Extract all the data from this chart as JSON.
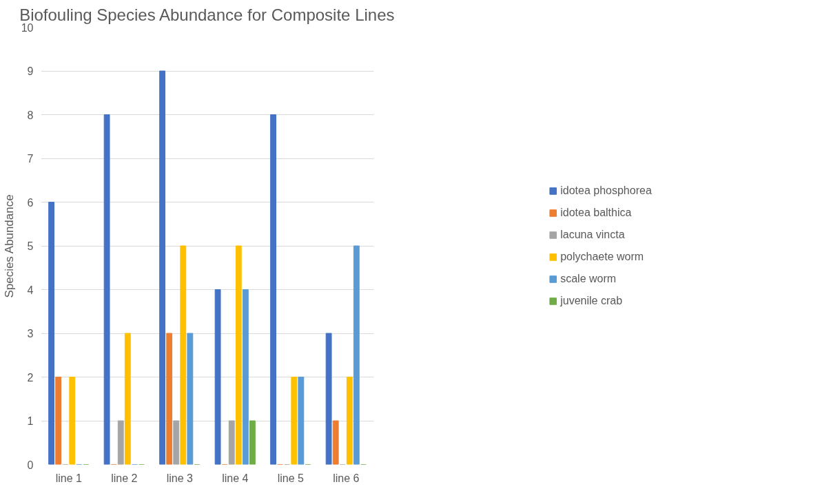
{
  "chart_data": {
    "type": "bar",
    "title": "Biofouling Species Abundance for Composite Lines",
    "ylabel": "Species Abundance",
    "categories": [
      "line 1",
      "line 2",
      "line 3",
      "line 4",
      "line 5",
      "line 6"
    ],
    "series": [
      {
        "name": "idotea phosphorea",
        "color": "#4472c4",
        "values": [
          6,
          8,
          9,
          4,
          8,
          3
        ]
      },
      {
        "name": "idotea balthica",
        "color": "#ed7d31",
        "values": [
          2,
          0,
          3,
          0,
          0,
          1
        ]
      },
      {
        "name": "lacuna vincta",
        "color": "#a5a5a5",
        "values": [
          0,
          1,
          1,
          1,
          0,
          0
        ]
      },
      {
        "name": "polychaete worm",
        "color": "#ffc000",
        "values": [
          2,
          3,
          5,
          5,
          2,
          2
        ]
      },
      {
        "name": "scale worm",
        "color": "#5b9bd5",
        "values": [
          0,
          0,
          3,
          4,
          2,
          5
        ]
      },
      {
        "name": "juvenile crab",
        "color": "#70ad47",
        "values": [
          0,
          0,
          0,
          1,
          0,
          0
        ]
      }
    ],
    "ylim": [
      0,
      10
    ],
    "yticks": [
      0,
      1,
      2,
      3,
      4,
      5,
      6,
      7,
      8,
      9,
      10
    ],
    "grid": "y",
    "legend": "right"
  }
}
